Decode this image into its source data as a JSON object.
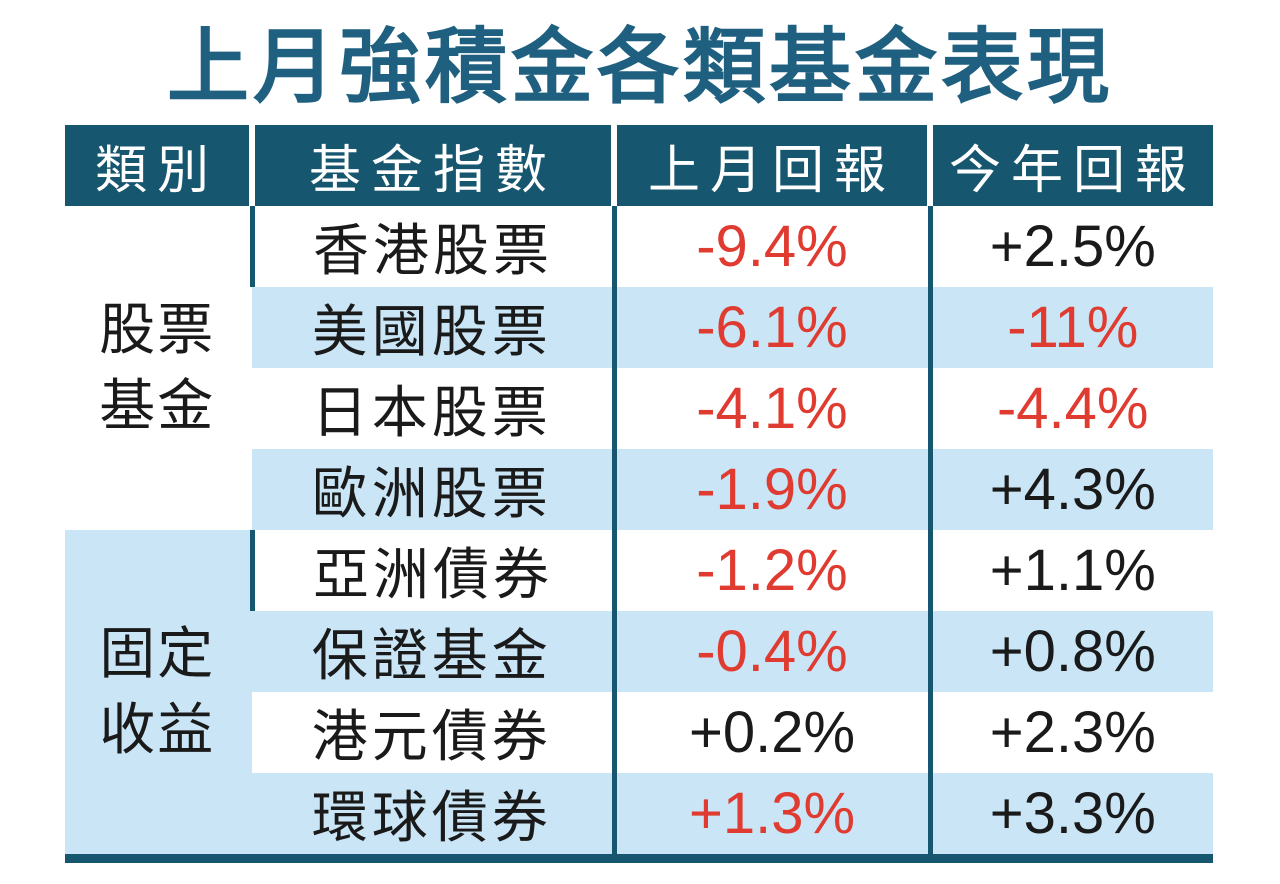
{
  "title": "上月強積金各類基金表現",
  "colors": {
    "red": "#e03b30",
    "dark": "#1a1a1a",
    "teal_dark": "#16566f",
    "title_teal": "#1f6080",
    "light_blue": "#c9e5f6",
    "header_text": "#ffffff"
  },
  "table": {
    "headers": [
      "類別",
      "基金指數",
      "上月回報",
      "今年回報"
    ],
    "groups": [
      {
        "category": "股票基金",
        "category_lines": [
          "股票",
          "基金"
        ],
        "rows": [
          {
            "index_name": "香港股票",
            "last_month": "-9.4%",
            "last_month_color": "red",
            "this_year": "+2.5%",
            "this_year_color": "dark"
          },
          {
            "index_name": "美國股票",
            "last_month": "-6.1%",
            "last_month_color": "red",
            "this_year": "-11%",
            "this_year_color": "red"
          },
          {
            "index_name": "日本股票",
            "last_month": "-4.1%",
            "last_month_color": "red",
            "this_year": "-4.4%",
            "this_year_color": "red"
          },
          {
            "index_name": "歐洲股票",
            "last_month": "-1.9%",
            "last_month_color": "red",
            "this_year": "+4.3%",
            "this_year_color": "dark"
          }
        ]
      },
      {
        "category": "固定收益",
        "category_lines": [
          "固定",
          "收益"
        ],
        "rows": [
          {
            "index_name": "亞洲債券",
            "last_month": "-1.2%",
            "last_month_color": "red",
            "this_year": "+1.1%",
            "this_year_color": "dark"
          },
          {
            "index_name": "保證基金",
            "last_month": "-0.4%",
            "last_month_color": "red",
            "this_year": "+0.8%",
            "this_year_color": "dark"
          },
          {
            "index_name": "港元債券",
            "last_month": "+0.2%",
            "last_month_color": "dark",
            "this_year": "+2.3%",
            "this_year_color": "dark"
          },
          {
            "index_name": "環球債券",
            "last_month": "+1.3%",
            "last_month_color": "red",
            "this_year": "+3.3%",
            "this_year_color": "dark"
          }
        ]
      }
    ]
  },
  "chart_data": {
    "type": "table",
    "title": "上月強積金各類基金表現",
    "columns": [
      "類別",
      "基金指數",
      "上月回報",
      "今年回報"
    ],
    "rows": [
      [
        "股票基金",
        "香港股票",
        "-9.4%",
        "+2.5%"
      ],
      [
        "股票基金",
        "美國股票",
        "-6.1%",
        "-11%"
      ],
      [
        "股票基金",
        "日本股票",
        "-4.1%",
        "-4.4%"
      ],
      [
        "股票基金",
        "歐洲股票",
        "-1.9%",
        "+4.3%"
      ],
      [
        "固定收益",
        "亞洲債券",
        "-1.2%",
        "+1.1%"
      ],
      [
        "固定收益",
        "保證基金",
        "-0.4%",
        "+0.8%"
      ],
      [
        "固定收益",
        "港元債券",
        "+0.2%",
        "+2.3%"
      ],
      [
        "固定收益",
        "環球債券",
        "+1.3%",
        "+3.3%"
      ]
    ]
  }
}
